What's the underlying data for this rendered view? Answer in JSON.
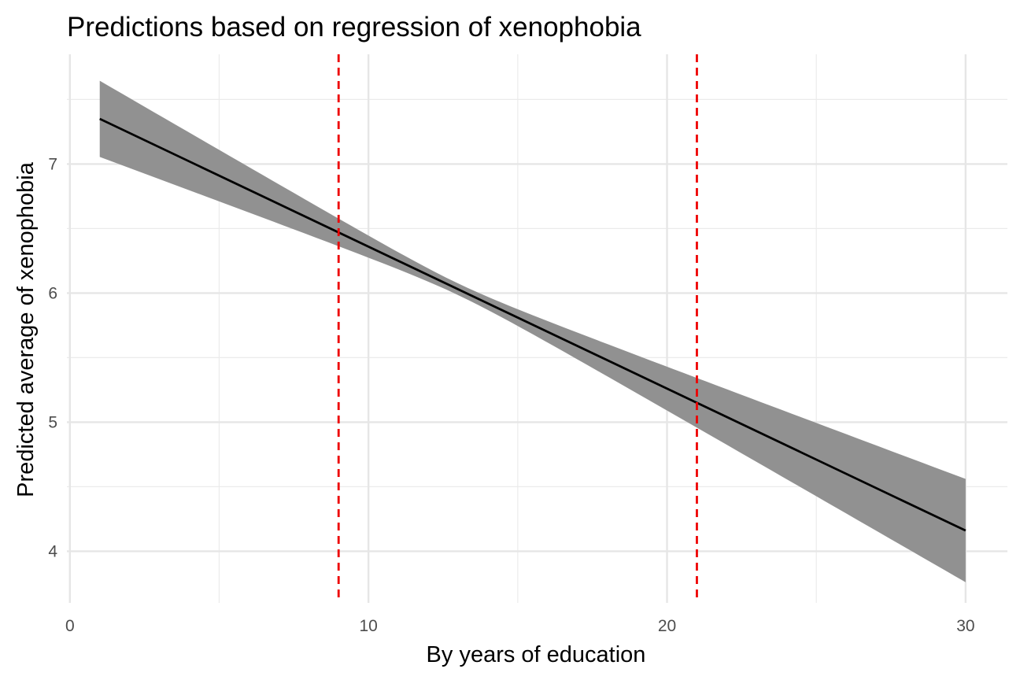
{
  "chart_data": {
    "type": "line",
    "title": "Predictions based on regression of xenophobia",
    "xlabel": "By years of education",
    "ylabel": "Predicted average of xenophobia",
    "xlim": [
      -0.1,
      31.4
    ],
    "ylim": [
      3.6,
      7.85
    ],
    "x_ticks": [
      0,
      10,
      20,
      30
    ],
    "x_tick_labels": [
      "0",
      "10",
      "20",
      "30"
    ],
    "x_minor_ticks": [
      5,
      15,
      25
    ],
    "y_ticks": [
      4,
      5,
      6,
      7
    ],
    "y_tick_labels": [
      "4",
      "5",
      "6",
      "7"
    ],
    "y_minor_ticks": [
      4.5,
      5.5,
      6.5,
      7.5
    ],
    "grid": true,
    "legend": "none",
    "series": [
      {
        "x": [
          1,
          30
        ],
        "y": [
          7.35,
          4.16
        ],
        "lower": [
          7.06,
          3.76
        ],
        "upper": [
          7.65,
          4.56
        ],
        "band_pinch_x": 13,
        "line_color": "#000000",
        "band_color": "#919191"
      }
    ],
    "reference_lines": [
      {
        "axis": "x",
        "value": 9,
        "style": "dashed",
        "color": "#ee0000"
      },
      {
        "axis": "x",
        "value": 21,
        "style": "dashed",
        "color": "#ee0000"
      }
    ]
  }
}
